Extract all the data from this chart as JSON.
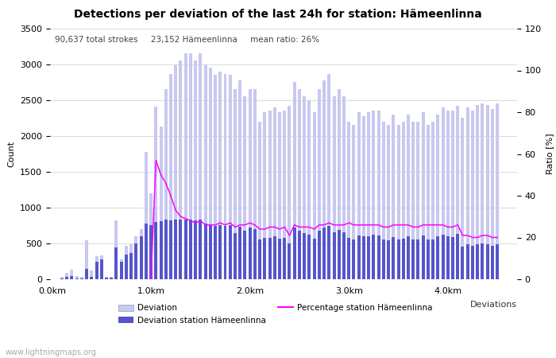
{
  "title": "Detections per deviation of the last 24h for station: Hämeenlinna",
  "subtitle": "90,637 total strokes     23,152 Hämeenlinna     mean ratio: 26%",
  "ylabel_left": "Count",
  "ylabel_right": "Ratio [%]",
  "x_label_right": "Deviations",
  "ylim_left": [
    0,
    3500
  ],
  "ylim_right": [
    0,
    120
  ],
  "xlim": [
    -0.02,
    4.7
  ],
  "x_positions": [
    0.05,
    0.1,
    0.15,
    0.2,
    0.25,
    0.3,
    0.35,
    0.4,
    0.45,
    0.5,
    0.55,
    0.6,
    0.65,
    0.7,
    0.75,
    0.8,
    0.85,
    0.9,
    0.95,
    1.0,
    1.05,
    1.1,
    1.15,
    1.2,
    1.25,
    1.3,
    1.35,
    1.4,
    1.45,
    1.5,
    1.55,
    1.6,
    1.65,
    1.7,
    1.75,
    1.8,
    1.85,
    1.9,
    1.95,
    2.0,
    2.05,
    2.1,
    2.15,
    2.2,
    2.25,
    2.3,
    2.35,
    2.4,
    2.45,
    2.5,
    2.55,
    2.6,
    2.65,
    2.7,
    2.75,
    2.8,
    2.85,
    2.9,
    2.95,
    3.0,
    3.05,
    3.1,
    3.15,
    3.2,
    3.25,
    3.3,
    3.35,
    3.4,
    3.45,
    3.5,
    3.55,
    3.6,
    3.65,
    3.7,
    3.75,
    3.8,
    3.85,
    3.9,
    3.95,
    4.0,
    4.05,
    4.1,
    4.15,
    4.2,
    4.25,
    4.3,
    4.35,
    4.4,
    4.45,
    4.5
  ],
  "deviation_bars_full": [
    5,
    30,
    90,
    130,
    40,
    30,
    550,
    120,
    320,
    330,
    30,
    30,
    820,
    280,
    470,
    490,
    600,
    700,
    1775,
    1200,
    2410,
    2130,
    2650,
    2870,
    3000,
    3050,
    3160,
    3160,
    3050,
    3160,
    3000,
    2950,
    2850,
    2900,
    2870,
    2850,
    2650,
    2780,
    2550,
    2650,
    2650,
    2200,
    2330,
    2350,
    2400,
    2330,
    2350,
    2420,
    2750,
    2650,
    2550,
    2500,
    2330,
    2650,
    2780,
    2870,
    2550,
    2650,
    2550,
    2200,
    2150,
    2330,
    2280,
    2330,
    2350,
    2350,
    2200,
    2160,
    2300,
    2160,
    2200,
    2300,
    2200,
    2200,
    2330,
    2150,
    2200,
    2300,
    2400,
    2350,
    2350,
    2420,
    2250,
    2400,
    2350,
    2430,
    2450,
    2430,
    2380,
    2450,
    2430,
    2450
  ],
  "station_bars_full": [
    2,
    8,
    30,
    40,
    10,
    8,
    150,
    30,
    250,
    280,
    20,
    18,
    450,
    240,
    350,
    370,
    500,
    600,
    780,
    760,
    800,
    810,
    830,
    820,
    830,
    830,
    830,
    830,
    820,
    830,
    780,
    760,
    750,
    760,
    750,
    760,
    650,
    730,
    680,
    720,
    700,
    560,
    580,
    580,
    600,
    570,
    580,
    500,
    720,
    680,
    640,
    620,
    570,
    680,
    720,
    750,
    660,
    690,
    660,
    580,
    560,
    610,
    600,
    600,
    620,
    610,
    560,
    550,
    590,
    560,
    570,
    600,
    560,
    560,
    610,
    560,
    560,
    600,
    620,
    600,
    590,
    630,
    460,
    490,
    470,
    490,
    500,
    490,
    470,
    490,
    470,
    480
  ],
  "ratio_line_full": [
    0,
    0,
    0,
    0,
    0,
    0,
    0,
    0,
    0,
    0,
    0,
    0,
    0,
    0,
    0,
    0,
    0,
    0,
    0,
    0,
    57,
    50,
    46,
    40,
    33,
    30,
    29,
    28,
    27,
    28,
    26,
    26,
    26,
    27,
    26,
    27,
    25,
    26,
    26,
    27,
    26,
    24,
    24,
    25,
    25,
    24,
    25,
    21,
    26,
    25,
    25,
    25,
    24,
    26,
    26,
    27,
    26,
    26,
    26,
    27,
    26,
    26,
    26,
    26,
    26,
    26,
    25,
    25,
    26,
    26,
    26,
    26,
    25,
    25,
    26,
    26,
    26,
    26,
    26,
    25,
    25,
    26,
    21,
    21,
    20,
    20,
    21,
    21,
    20,
    20,
    20,
    21
  ],
  "color_light_bar": "#c8c8f0",
  "color_dark_bar": "#5555cc",
  "color_line": "#ff00ff",
  "color_background": "#ffffff",
  "color_grid": "#cccccc",
  "watermark": "www.lightningmaps.org",
  "legend_deviation": "Deviation",
  "legend_station": "Deviation station Hämeenlinna",
  "legend_percentage": "Percentage station Hämeenlinna",
  "xtick_positions": [
    0.0,
    1.0,
    2.0,
    3.0,
    4.0
  ],
  "xtick_labels": [
    "0.0km",
    "1.0km",
    "2.0km",
    "3.0km",
    "4.0km"
  ],
  "ytick_left": [
    0,
    500,
    1000,
    1500,
    2000,
    2500,
    3000,
    3500
  ],
  "ytick_right": [
    0,
    20,
    40,
    60,
    80,
    100,
    120
  ],
  "title_fontsize": 10,
  "subtitle_fontsize": 7.5,
  "axis_fontsize": 8,
  "tick_fontsize": 8,
  "watermark_fontsize": 7
}
